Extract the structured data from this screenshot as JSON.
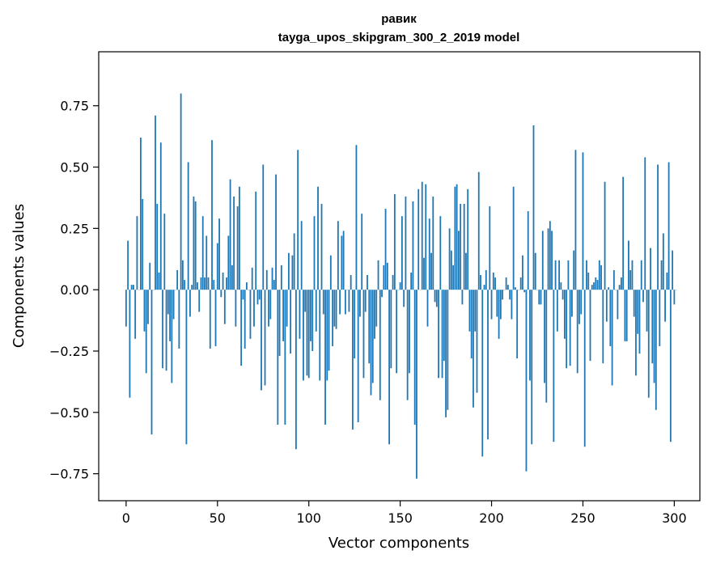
{
  "chart_data": {
    "type": "bar",
    "title_line1": "равик",
    "title_line2": "tayga_upos_skipgram_300_2_2019 model",
    "xlabel": "Vector components",
    "ylabel": "Components values",
    "xlim": [
      -15,
      314
    ],
    "ylim": [
      -0.86,
      0.97
    ],
    "xticks": [
      0,
      50,
      100,
      150,
      200,
      250,
      300
    ],
    "xtick_labels": [
      "0",
      "50",
      "100",
      "150",
      "200",
      "250",
      "300"
    ],
    "yticks": [
      -0.75,
      -0.5,
      -0.25,
      0.0,
      0.25,
      0.5,
      0.75
    ],
    "ytick_labels": [
      "−0.75",
      "−0.50",
      "−0.25",
      "0.00",
      "0.25",
      "0.50",
      "0.75"
    ],
    "grid": false,
    "bar_color": "#1f77b4",
    "values": [
      -0.15,
      0.2,
      -0.44,
      0.02,
      0.02,
      -0.2,
      0.3,
      0.0,
      0.62,
      0.37,
      -0.17,
      -0.34,
      -0.14,
      0.11,
      -0.59,
      0.0,
      0.71,
      0.35,
      0.07,
      0.6,
      -0.32,
      0.31,
      -0.33,
      -0.1,
      -0.21,
      -0.38,
      -0.12,
      0.0,
      0.08,
      -0.24,
      0.8,
      0.12,
      0.04,
      -0.63,
      0.52,
      -0.11,
      0.02,
      0.38,
      0.36,
      0.03,
      -0.09,
      0.05,
      0.3,
      0.05,
      0.22,
      0.05,
      -0.24,
      0.61,
      0.04,
      -0.23,
      0.19,
      0.29,
      -0.03,
      0.07,
      -0.14,
      0.05,
      0.22,
      0.45,
      0.1,
      0.38,
      -0.15,
      0.34,
      0.42,
      -0.31,
      -0.04,
      -0.24,
      0.03,
      0.0,
      -0.2,
      0.09,
      -0.15,
      0.4,
      -0.06,
      -0.04,
      -0.41,
      0.51,
      -0.39,
      0.08,
      -0.15,
      -0.12,
      0.09,
      0.04,
      0.47,
      -0.55,
      -0.27,
      0.1,
      -0.21,
      -0.55,
      -0.15,
      0.15,
      -0.26,
      0.14,
      0.23,
      -0.65,
      0.57,
      -0.2,
      0.28,
      -0.37,
      -0.09,
      -0.35,
      -0.36,
      -0.21,
      -0.25,
      0.3,
      -0.17,
      0.42,
      -0.37,
      0.35,
      -0.1,
      -0.55,
      -0.37,
      -0.33,
      0.14,
      -0.23,
      -0.15,
      -0.16,
      0.28,
      -0.1,
      0.22,
      0.24,
      -0.1,
      0.0,
      -0.09,
      0.06,
      -0.57,
      -0.28,
      0.59,
      -0.54,
      -0.11,
      0.31,
      -0.36,
      -0.09,
      0.06,
      -0.3,
      -0.43,
      -0.38,
      -0.2,
      -0.15,
      0.12,
      -0.45,
      -0.03,
      0.1,
      0.33,
      0.11,
      -0.63,
      -0.32,
      0.06,
      0.39,
      -0.34,
      0.0,
      0.03,
      0.3,
      -0.07,
      0.38,
      -0.45,
      -0.34,
      0.07,
      0.36,
      -0.55,
      -0.77,
      0.41,
      0.0,
      0.44,
      0.13,
      0.43,
      -0.15,
      0.29,
      0.15,
      0.38,
      -0.05,
      -0.07,
      -0.36,
      0.3,
      -0.36,
      -0.29,
      -0.52,
      -0.49,
      0.25,
      0.16,
      0.1,
      0.42,
      0.43,
      0.24,
      0.35,
      -0.06,
      0.35,
      0.15,
      0.41,
      -0.17,
      -0.28,
      -0.48,
      -0.17,
      -0.42,
      0.48,
      0.06,
      -0.68,
      0.02,
      0.08,
      -0.61,
      0.34,
      -0.12,
      0.07,
      0.05,
      -0.11,
      -0.2,
      -0.12,
      -0.04,
      0.0,
      0.05,
      0.02,
      -0.04,
      -0.12,
      0.42,
      0.01,
      -0.28,
      0.0,
      0.05,
      0.14,
      -0.01,
      -0.74,
      0.32,
      -0.37,
      -0.63,
      0.67,
      0.15,
      0.0,
      -0.06,
      -0.06,
      0.24,
      -0.38,
      -0.46,
      0.25,
      0.28,
      0.24,
      -0.62,
      0.12,
      -0.17,
      0.12,
      0.03,
      -0.04,
      -0.2,
      -0.32,
      0.12,
      -0.31,
      -0.11,
      0.16,
      0.57,
      -0.34,
      -0.14,
      -0.1,
      0.56,
      -0.64,
      0.12,
      0.07,
      -0.29,
      0.02,
      0.03,
      0.05,
      0.04,
      0.12,
      0.1,
      -0.3,
      0.44,
      -0.13,
      0.01,
      -0.23,
      -0.39,
      0.08,
      0.0,
      -0.12,
      0.02,
      0.05,
      0.46,
      -0.21,
      -0.21,
      0.2,
      0.08,
      0.12,
      -0.11,
      -0.35,
      -0.18,
      -0.26,
      0.12,
      -0.05,
      0.54,
      -0.17,
      -0.44,
      0.17,
      -0.3,
      -0.38,
      -0.49,
      0.51,
      -0.23,
      0.12,
      0.23,
      -0.13,
      0.07,
      0.52,
      -0.62,
      0.16,
      -0.06,
      0.0
    ]
  }
}
